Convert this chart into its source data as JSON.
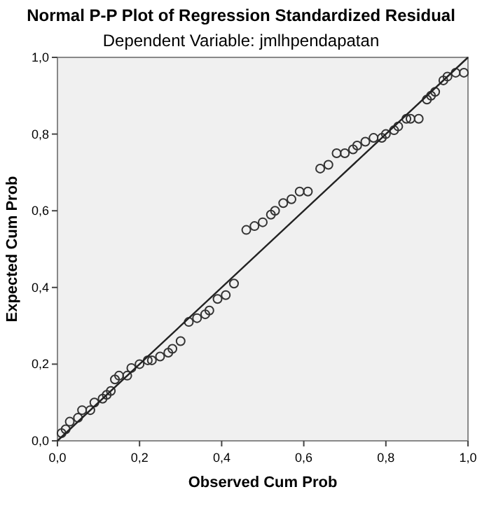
{
  "chart_data": {
    "type": "scatter",
    "title": "Normal P-P Plot of Regression Standardized Residual",
    "subtitle": "Dependent Variable: jmlhpendapatan",
    "xlabel": "Observed Cum Prob",
    "ylabel": "Expected Cum Prob",
    "xlim": [
      0,
      1
    ],
    "ylim": [
      0,
      1
    ],
    "xticks": [
      {
        "value": 0,
        "label": "0,0"
      },
      {
        "value": 0.2,
        "label": "0,2"
      },
      {
        "value": 0.4,
        "label": "0,4"
      },
      {
        "value": 0.6,
        "label": "0,6"
      },
      {
        "value": 0.8,
        "label": "0,8"
      },
      {
        "value": 1,
        "label": "1,0"
      }
    ],
    "yticks": [
      {
        "value": 0,
        "label": "0,0"
      },
      {
        "value": 0.2,
        "label": "0,2"
      },
      {
        "value": 0.4,
        "label": "0,4"
      },
      {
        "value": 0.6,
        "label": "0,6"
      },
      {
        "value": 0.8,
        "label": "0,8"
      },
      {
        "value": 1,
        "label": "1,0"
      }
    ],
    "marker": "circle",
    "grid": false,
    "series": [
      {
        "color": "#333333",
        "x": [
          0.01,
          0.02,
          0.03,
          0.05,
          0.06,
          0.08,
          0.09,
          0.11,
          0.12,
          0.13,
          0.14,
          0.15,
          0.17,
          0.18,
          0.2,
          0.22,
          0.23,
          0.25,
          0.27,
          0.28,
          0.3,
          0.32,
          0.34,
          0.36,
          0.37,
          0.39,
          0.41,
          0.43,
          0.46,
          0.48,
          0.5,
          0.52,
          0.53,
          0.55,
          0.57,
          0.59,
          0.61,
          0.64,
          0.66,
          0.68,
          0.7,
          0.72,
          0.73,
          0.75,
          0.77,
          0.79,
          0.8,
          0.82,
          0.83,
          0.85,
          0.86,
          0.88,
          0.9,
          0.91,
          0.92,
          0.94,
          0.95,
          0.97,
          0.99
        ],
        "values": [
          0.02,
          0.03,
          0.05,
          0.06,
          0.08,
          0.08,
          0.1,
          0.11,
          0.12,
          0.13,
          0.16,
          0.17,
          0.17,
          0.19,
          0.2,
          0.21,
          0.21,
          0.22,
          0.23,
          0.24,
          0.26,
          0.31,
          0.32,
          0.33,
          0.34,
          0.37,
          0.38,
          0.41,
          0.55,
          0.56,
          0.57,
          0.59,
          0.6,
          0.62,
          0.63,
          0.65,
          0.65,
          0.71,
          0.72,
          0.75,
          0.75,
          0.76,
          0.77,
          0.78,
          0.79,
          0.79,
          0.8,
          0.81,
          0.82,
          0.84,
          0.84,
          0.84,
          0.89,
          0.9,
          0.91,
          0.94,
          0.95,
          0.96,
          0.96
        ]
      },
      {
        "type": "line",
        "marker": "none",
        "color": "#222222",
        "x": [
          0,
          1
        ],
        "values": [
          0,
          1
        ]
      }
    ]
  }
}
